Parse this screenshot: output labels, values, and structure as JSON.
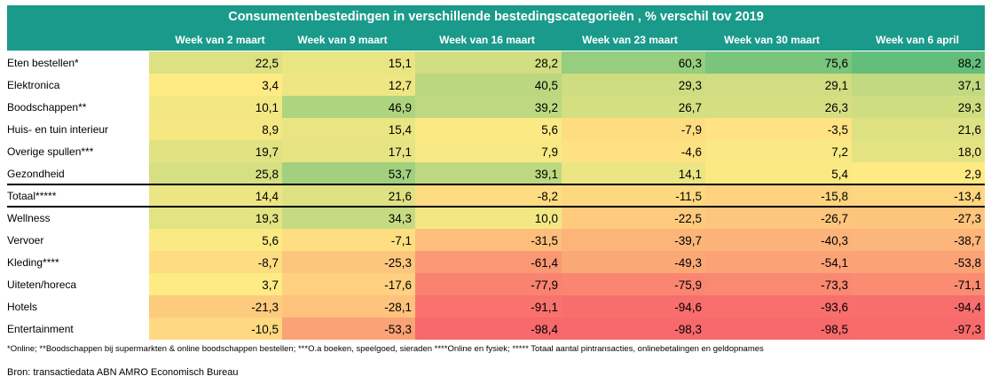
{
  "chart_data": {
    "type": "heatmap",
    "title": "Consumentenbestedingen in verschillende bestedingscategorieën , % verschil tov 2019",
    "columns": [
      "Week van 2 maart",
      "Week van 9 maart",
      "Week van 16 maart",
      "Week van 23 maart",
      "Week van 30 maart",
      "Week van 6 april"
    ],
    "rows": [
      {
        "label": "Eten bestellen*",
        "values": [
          22.5,
          15.1,
          28.2,
          60.3,
          75.6,
          88.2
        ]
      },
      {
        "label": "Elektronica",
        "values": [
          3.4,
          12.7,
          40.5,
          29.3,
          29.1,
          37.1
        ]
      },
      {
        "label": "Boodschappen**",
        "values": [
          10.1,
          46.9,
          39.2,
          26.7,
          26.3,
          29.3
        ]
      },
      {
        "label": "Huis- en tuin interieur",
        "values": [
          8.9,
          15.4,
          5.6,
          -7.9,
          -3.5,
          21.6
        ]
      },
      {
        "label": "Overige spullen***",
        "values": [
          19.7,
          17.1,
          7.9,
          -4.6,
          7.2,
          18.0
        ]
      },
      {
        "label": "Gezondheid",
        "values": [
          25.8,
          53.7,
          39.1,
          14.1,
          5.4,
          2.9
        ]
      },
      {
        "label": "Totaal*****",
        "values": [
          14.4,
          21.6,
          -8.2,
          -11.5,
          -15.8,
          -13.4
        ],
        "total": true
      },
      {
        "label": "Wellness",
        "values": [
          19.3,
          34.3,
          10.0,
          -22.5,
          -26.7,
          -27.3
        ]
      },
      {
        "label": "Vervoer",
        "values": [
          5.6,
          -7.1,
          -31.5,
          -39.7,
          -40.3,
          -38.7
        ]
      },
      {
        "label": "Kleding****",
        "values": [
          -8.7,
          -25.3,
          -61.4,
          -49.3,
          -54.1,
          -53.8
        ]
      },
      {
        "label": "Uiteten/horeca",
        "values": [
          3.7,
          -17.6,
          -77.9,
          -75.9,
          -73.3,
          -71.1
        ]
      },
      {
        "label": "Hotels",
        "values": [
          -21.3,
          -28.1,
          -91.1,
          -94.6,
          -93.6,
          -94.4
        ]
      },
      {
        "label": "Entertainment",
        "values": [
          -10.5,
          -53.3,
          -98.4,
          -98.3,
          -98.5,
          -97.3
        ]
      }
    ],
    "decimal_separator": ",",
    "color_scale": {
      "min": -98.5,
      "max": 88.2,
      "low": "#f8696b",
      "mid": "#ffeb84",
      "high": "#63be7b"
    },
    "header_color": "#1a9a8a"
  },
  "footnote": "*Online; **Boodschappen bij supermarkten & online boodschappen bestellen; ***O.a boeken, speelgoed, sieraden ****Online en fysiek; ***** Totaal aantal pintransacties, onlinebetalingen en geldopnames",
  "source": "Bron: transactiedata ABN AMRO Economisch Bureau"
}
